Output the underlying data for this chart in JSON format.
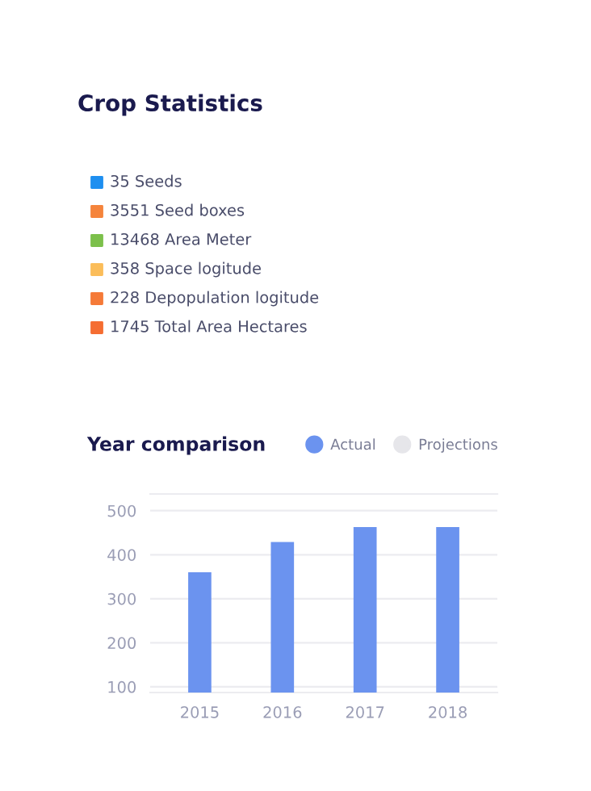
{
  "chart_data": [
    {
      "type": "other",
      "title": "Crop Statistics",
      "annotations": [
        "35 Seeds",
        "3551 Seed boxes",
        "13468 Area Meter",
        "358 Space logitude",
        "228 Depopulation logitude",
        "1745 Total Area Hectares"
      ],
      "colors": [
        "#1e8ff0",
        "#f5843c",
        "#7cc04b",
        "#fbbd5a",
        "#f57a38",
        "#f56d32"
      ]
    },
    {
      "type": "bar",
      "title": "Year comparison",
      "categories": [
        "2015",
        "2016",
        "2017",
        "2018"
      ],
      "series": [
        {
          "name": "Actual",
          "color": "#6b93ef",
          "values": [
            360,
            429,
            463,
            463
          ]
        },
        {
          "name": "Projections",
          "color": "#e6e6ea",
          "values": [
            null,
            null,
            null,
            null
          ]
        }
      ],
      "ylim": [
        87,
        538
      ],
      "yticks": [
        100,
        200,
        300,
        400,
        500
      ],
      "grid": "y",
      "legend": "top right"
    }
  ]
}
